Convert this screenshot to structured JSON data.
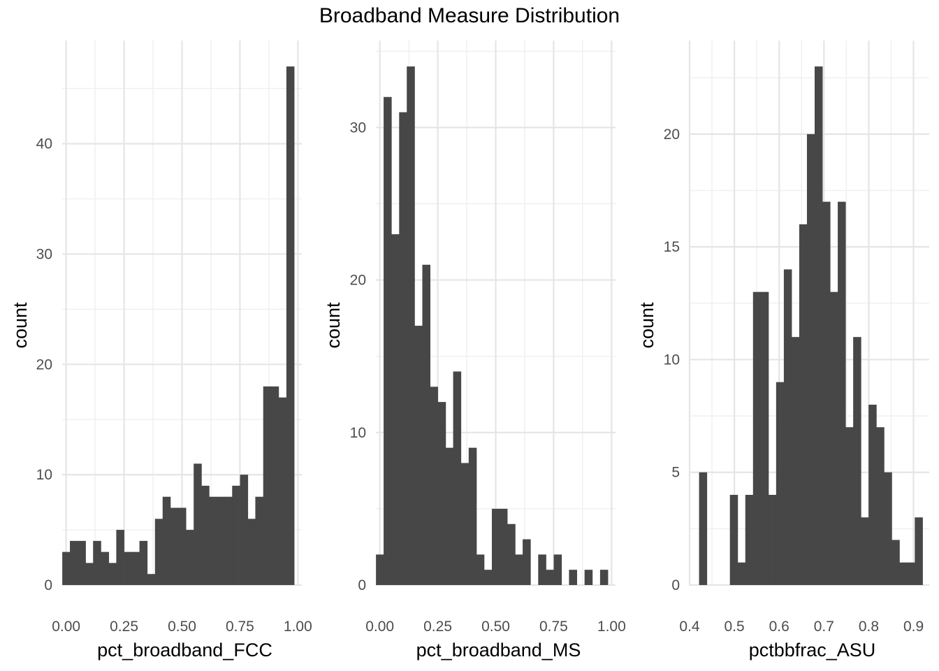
{
  "title": "Broadband Measure Distribution",
  "colors": {
    "bar": "#474747",
    "grid_major": "#e5e5e5",
    "grid_minor": "#f0f0f0",
    "background": "#ffffff"
  },
  "chart_data": [
    {
      "type": "bar",
      "xlabel": "pct_broadband_FCC",
      "ylabel": "count",
      "xlim": [
        -0.017,
        1.017
      ],
      "ylim": [
        0,
        49.35
      ],
      "x_ticks": [
        0,
        0.25,
        0.5,
        0.75,
        1
      ],
      "x_tick_labels": [
        "0.00",
        "0.25",
        "0.50",
        "0.75",
        "1.00"
      ],
      "y_ticks": [
        0,
        10,
        20,
        30,
        40
      ],
      "y_tick_labels": [
        "0",
        "10",
        "20",
        "30",
        "40"
      ],
      "bin_width": 0.0333,
      "bin_centers": [
        0.0,
        0.033,
        0.067,
        0.1,
        0.133,
        0.167,
        0.2,
        0.233,
        0.267,
        0.3,
        0.333,
        0.367,
        0.4,
        0.433,
        0.467,
        0.5,
        0.533,
        0.567,
        0.6,
        0.633,
        0.667,
        0.7,
        0.733,
        0.767,
        0.8,
        0.833,
        0.867,
        0.9,
        0.933,
        0.967,
        1.0
      ],
      "counts": [
        3,
        4,
        4,
        2,
        4,
        3,
        2,
        5,
        3,
        3,
        4,
        1,
        6,
        8,
        7,
        7,
        5,
        11,
        9,
        8,
        8,
        8,
        9,
        10,
        6,
        8,
        18,
        18,
        17,
        47,
        0
      ],
      "grid": true
    },
    {
      "type": "bar",
      "xlabel": "pct_broadband_MS",
      "ylabel": "count",
      "xlim": [
        -0.017,
        1.017
      ],
      "ylim": [
        0,
        35.7
      ],
      "x_ticks": [
        0,
        0.25,
        0.5,
        0.75,
        1
      ],
      "x_tick_labels": [
        "0.00",
        "0.25",
        "0.50",
        "0.75",
        "1.00"
      ],
      "y_ticks": [
        0,
        10,
        20,
        30
      ],
      "y_tick_labels": [
        "0",
        "10",
        "20",
        "30"
      ],
      "bin_width": 0.0333,
      "bin_centers": [
        0.0,
        0.033,
        0.067,
        0.1,
        0.133,
        0.167,
        0.2,
        0.233,
        0.267,
        0.3,
        0.333,
        0.367,
        0.4,
        0.433,
        0.467,
        0.5,
        0.533,
        0.567,
        0.6,
        0.633,
        0.667,
        0.7,
        0.733,
        0.767,
        0.8,
        0.833,
        0.867,
        0.9,
        0.933,
        0.967,
        1.0
      ],
      "counts": [
        2,
        32,
        23,
        31,
        34,
        17,
        21,
        13,
        12,
        9,
        14,
        8,
        9,
        2,
        1,
        5,
        5,
        4,
        2,
        3,
        0,
        2,
        1,
        2,
        0,
        1,
        0,
        1,
        0,
        1,
        0
      ],
      "grid": true
    },
    {
      "type": "bar",
      "xlabel": "pctbbfrac_ASU",
      "ylabel": "count",
      "xlim": [
        0.4,
        0.935
      ],
      "ylim": [
        0,
        24.15
      ],
      "x_ticks": [
        0.4,
        0.5,
        0.6,
        0.7,
        0.8,
        0.9
      ],
      "x_tick_labels": [
        "0.4",
        "0.5",
        "0.6",
        "0.7",
        "0.8",
        "0.9"
      ],
      "y_ticks": [
        0,
        5,
        10,
        15,
        20
      ],
      "y_tick_labels": [
        "0",
        "5",
        "10",
        "15",
        "20"
      ],
      "bin_width": 0.0172,
      "bin_centers": [
        0.4298,
        0.447,
        0.4642,
        0.4814,
        0.4986,
        0.5158,
        0.533,
        0.5502,
        0.5674,
        0.5846,
        0.6018,
        0.619,
        0.6362,
        0.6534,
        0.6706,
        0.6878,
        0.705,
        0.7222,
        0.7394,
        0.7566,
        0.7738,
        0.791,
        0.8082,
        0.8254,
        0.8426,
        0.8598,
        0.877,
        0.8942,
        0.9114
      ],
      "counts": [
        5,
        0,
        0,
        0,
        4,
        1,
        4,
        13,
        13,
        4,
        9,
        14,
        11,
        16,
        20,
        23,
        17,
        13,
        17,
        7,
        11,
        3,
        8,
        7,
        5,
        2,
        1,
        1,
        3
      ],
      "extra_bins": [
        {
          "x": 0.9114,
          "count": 1
        }
      ],
      "grid": true
    }
  ]
}
